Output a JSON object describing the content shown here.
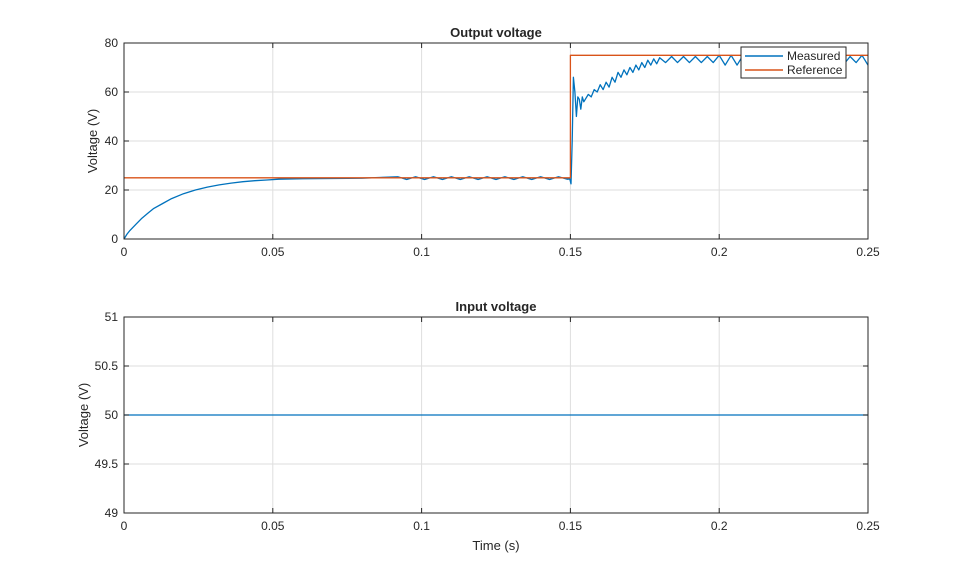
{
  "chart_data": [
    {
      "type": "line",
      "title": "Output voltage",
      "xlabel": "",
      "ylabel": "Voltage (V)",
      "xlim": [
        0,
        0.25
      ],
      "ylim": [
        0,
        80
      ],
      "xticks": [
        0,
        0.05,
        0.1,
        0.15,
        0.2,
        0.25
      ],
      "xtick_labels": [
        "0",
        "0.05",
        "0.1",
        "0.15",
        "0.2",
        "0.25"
      ],
      "yticks": [
        0,
        20,
        40,
        60,
        80
      ],
      "ytick_labels": [
        "0",
        "20",
        "40",
        "60",
        "80"
      ],
      "grid": true,
      "legend": "top-right",
      "series": [
        {
          "name": "Measured",
          "color": "#0072BD",
          "x": [
            0,
            0.001,
            0.002,
            0.004,
            0.006,
            0.008,
            0.01,
            0.013,
            0.016,
            0.02,
            0.024,
            0.028,
            0.032,
            0.036,
            0.04,
            0.044,
            0.048,
            0.052,
            0.056,
            0.06,
            0.07,
            0.08,
            0.092,
            0.095,
            0.098,
            0.101,
            0.104,
            0.107,
            0.11,
            0.113,
            0.116,
            0.119,
            0.122,
            0.125,
            0.128,
            0.131,
            0.134,
            0.137,
            0.14,
            0.143,
            0.146,
            0.149,
            0.1498,
            0.1502,
            0.1506,
            0.151,
            0.1515,
            0.152,
            0.1525,
            0.153,
            0.1535,
            0.154,
            0.1545,
            0.155,
            0.156,
            0.157,
            0.158,
            0.159,
            0.16,
            0.161,
            0.162,
            0.163,
            0.164,
            0.165,
            0.166,
            0.167,
            0.168,
            0.169,
            0.17,
            0.171,
            0.172,
            0.173,
            0.174,
            0.175,
            0.176,
            0.177,
            0.178,
            0.179,
            0.18,
            0.182,
            0.184,
            0.186,
            0.188,
            0.19,
            0.192,
            0.194,
            0.196,
            0.198,
            0.2,
            0.202,
            0.204,
            0.206,
            0.208,
            0.21,
            0.212,
            0.214,
            0.216,
            0.218,
            0.22,
            0.222,
            0.224,
            0.226,
            0.228,
            0.23,
            0.232,
            0.234,
            0.236,
            0.238,
            0.24,
            0.242,
            0.244,
            0.246,
            0.248,
            0.25
          ],
          "y": [
            0,
            2,
            3.5,
            6,
            8.5,
            10.5,
            12.5,
            14.5,
            16.5,
            18.5,
            20,
            21.2,
            22.1,
            22.8,
            23.4,
            23.8,
            24.1,
            24.4,
            24.5,
            24.6,
            24.7,
            24.8,
            25.4,
            24.3,
            25.4,
            24.3,
            25.4,
            24.3,
            25.4,
            24.3,
            25.4,
            24.3,
            25.4,
            24.3,
            25.4,
            24.3,
            25.4,
            24.3,
            25.4,
            24.3,
            25.4,
            24.4,
            24.5,
            22.5,
            40,
            66,
            60,
            50,
            58,
            57,
            53,
            58,
            56,
            57,
            59,
            58,
            61,
            60,
            63,
            61,
            64,
            62,
            66,
            64,
            68,
            66,
            69,
            67,
            70,
            68,
            71,
            69,
            72,
            70,
            73,
            71,
            73.5,
            71.5,
            74,
            72,
            74.5,
            72,
            74.5,
            72,
            74.5,
            72,
            74.5,
            72,
            75,
            71,
            75,
            71,
            75,
            71.5,
            74.5,
            72,
            75,
            71,
            75,
            71,
            75,
            71.5,
            74.5,
            72,
            75,
            71,
            75,
            71,
            75,
            71.5,
            74.5,
            72,
            75,
            71
          ]
        },
        {
          "name": "Reference",
          "color": "#D95319",
          "x": [
            0,
            0.15,
            0.15,
            0.25
          ],
          "y": [
            25,
            25,
            75,
            75
          ]
        }
      ]
    },
    {
      "type": "line",
      "title": "Input voltage",
      "xlabel": "Time (s)",
      "ylabel": "Voltage (V)",
      "xlim": [
        0,
        0.25
      ],
      "ylim": [
        49,
        51
      ],
      "xticks": [
        0,
        0.05,
        0.1,
        0.15,
        0.2,
        0.25
      ],
      "xtick_labels": [
        "0",
        "0.05",
        "0.1",
        "0.15",
        "0.2",
        "0.25"
      ],
      "yticks": [
        49,
        49.5,
        50,
        50.5,
        51
      ],
      "ytick_labels": [
        "49",
        "49.5",
        "50",
        "50.5",
        "51"
      ],
      "grid": true,
      "series": [
        {
          "color": "#0072BD",
          "x": [
            0,
            0.25
          ],
          "y": [
            50,
            50
          ]
        }
      ]
    }
  ]
}
